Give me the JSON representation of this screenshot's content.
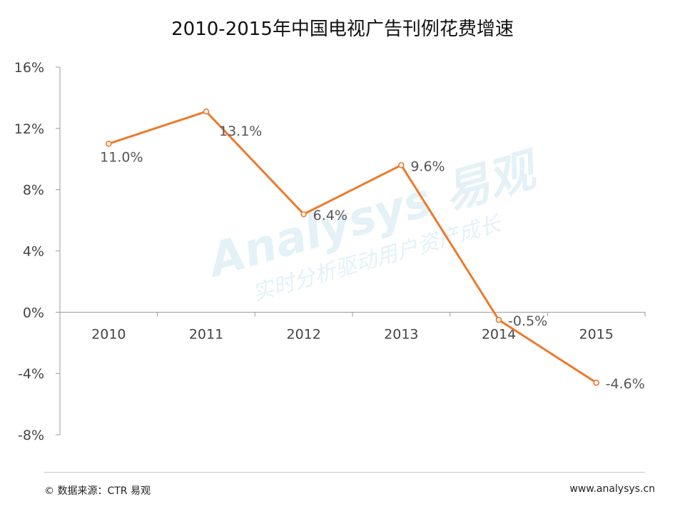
{
  "chart_data": {
    "type": "line",
    "title": "2010-2015年中国电视广告刊例花费增速",
    "categories": [
      "2010",
      "2011",
      "2012",
      "2013",
      "2014",
      "2015"
    ],
    "values": [
      11.0,
      13.1,
      6.4,
      9.6,
      -0.5,
      -4.6
    ],
    "data_labels": [
      "11.0%",
      "13.1%",
      "6.4%",
      "9.6%",
      "-0.5%",
      "-4.6%"
    ],
    "y_ticks": [
      -8,
      -4,
      0,
      4,
      8,
      12,
      16
    ],
    "y_tick_labels": [
      "-8%",
      "-4%",
      "0%",
      "4%",
      "8%",
      "12%",
      "16%"
    ],
    "ylim": [
      -8,
      16
    ],
    "unit": "%",
    "grid": false,
    "line_color": "#ec7a2c"
  },
  "watermark": {
    "brand": "Analysys 易观",
    "tagline": "实时分析驱动用户资产成长"
  },
  "footer": {
    "source": "© 数据来源：CTR 易观",
    "url": "www.analysys.cn"
  }
}
